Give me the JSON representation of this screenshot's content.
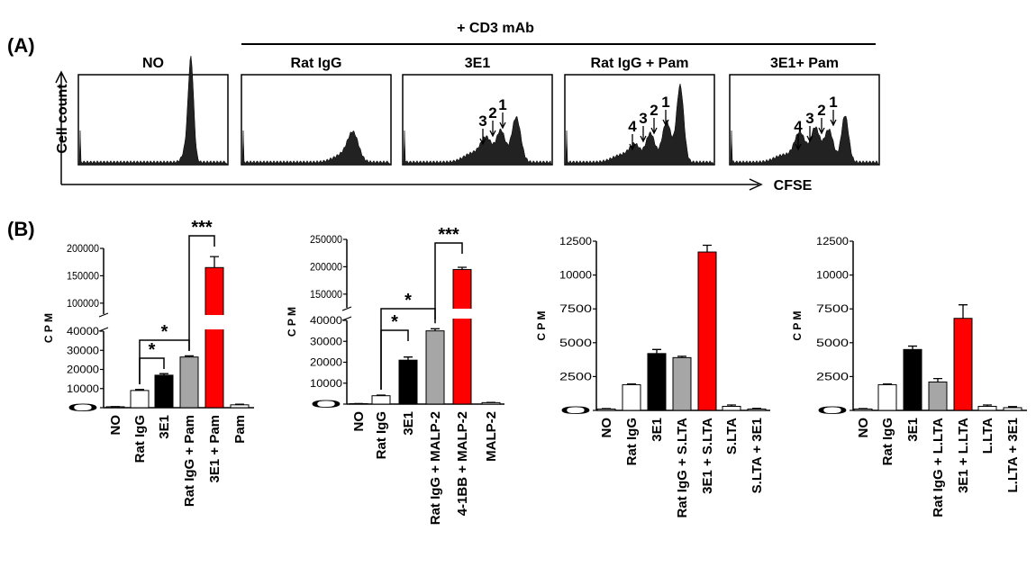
{
  "panel_a": {
    "label": "(A)",
    "group_label": "+ CD3 mAb",
    "y_label": "Cell count",
    "x_label": "CFSE",
    "panels": [
      {
        "title": "NO",
        "peaks": []
      },
      {
        "title": "Rat IgG",
        "peaks": []
      },
      {
        "title": "3E1",
        "peaks": [
          "3",
          "2",
          "1"
        ]
      },
      {
        "title": "Rat IgG + Pam",
        "peaks": [
          "4",
          "3",
          "2",
          "1"
        ]
      },
      {
        "title": "3E1+ Pam",
        "peaks": [
          "4",
          "3",
          "2",
          "1"
        ]
      }
    ]
  },
  "panel_b_label": "(B)",
  "chart_data": [
    {
      "type": "bar",
      "y_label": "C P M",
      "categories": [
        "NO",
        "Rat IgG",
        "3E1",
        "Rat IgG + Pam",
        "3E1 + Pam",
        "Pam"
      ],
      "values": [
        500,
        9000,
        17000,
        26500,
        165000,
        1500
      ],
      "errors": [
        100,
        500,
        800,
        600,
        20000,
        300
      ],
      "colors": [
        "#ffffff",
        "#ffffff",
        "#000000",
        "#a6a6a6",
        "#ff0000",
        "#ffffff"
      ],
      "y_segments": [
        {
          "ylim": [
            0,
            40000
          ],
          "yticks": [
            0,
            10000,
            20000,
            30000,
            40000
          ]
        },
        {
          "ylim": [
            80000,
            200000
          ],
          "yticks": [
            100000,
            150000,
            200000
          ]
        }
      ],
      "annotations": [
        {
          "text": "*",
          "from": 1,
          "to": 2
        },
        {
          "text": "*",
          "from": 1,
          "to": 3
        },
        {
          "text": "***",
          "from": 3,
          "to": 4
        }
      ]
    },
    {
      "type": "bar",
      "y_label": "C P M",
      "categories": [
        "NO",
        "Rat IgG",
        "3E1",
        "Rat IgG + MALP-2",
        "4-1BB + MALP-2",
        "MALP-2"
      ],
      "values": [
        200,
        4000,
        21000,
        35000,
        195000,
        700
      ],
      "errors": [
        50,
        300,
        1500,
        1000,
        4000,
        100
      ],
      "colors": [
        "#ffffff",
        "#ffffff",
        "#000000",
        "#a6a6a6",
        "#ff0000",
        "#ffffff"
      ],
      "y_segments": [
        {
          "ylim": [
            0,
            40000
          ],
          "yticks": [
            0,
            10000,
            20000,
            30000,
            40000
          ]
        },
        {
          "ylim": [
            125000,
            250000
          ],
          "yticks": [
            150000,
            200000,
            250000
          ]
        }
      ],
      "annotations": [
        {
          "text": "*",
          "from": 1,
          "to": 2
        },
        {
          "text": "*",
          "from": 1,
          "to": 3
        },
        {
          "text": "***",
          "from": 3,
          "to": 4
        }
      ]
    },
    {
      "type": "bar",
      "y_label": "C P M",
      "categories": [
        "NO",
        "Rat IgG",
        "3E1",
        "Rat IgG + S.LTA",
        "3E1 + S.LTA",
        "S.LTA",
        "S.LTA + 3E1"
      ],
      "values": [
        100,
        1900,
        4200,
        3900,
        11700,
        300,
        100
      ],
      "errors": [
        30,
        50,
        300,
        100,
        500,
        100,
        50
      ],
      "colors": [
        "#ffffff",
        "#ffffff",
        "#000000",
        "#a6a6a6",
        "#ff0000",
        "#ffffff",
        "#ffffff"
      ],
      "y_segments": [
        {
          "ylim": [
            0,
            12500
          ],
          "yticks": [
            0,
            2500,
            5000,
            7500,
            10000,
            12500
          ]
        }
      ],
      "annotations": []
    },
    {
      "type": "bar",
      "y_label": "C P M",
      "categories": [
        "NO",
        "Rat IgG",
        "3E1",
        "Rat IgG + L.LTA",
        "3E1 + L.LTA",
        "L.LTA",
        "L.LTA + 3E1"
      ],
      "values": [
        100,
        1900,
        4500,
        2100,
        6800,
        300,
        200
      ],
      "errors": [
        30,
        50,
        250,
        250,
        1000,
        100,
        80
      ],
      "colors": [
        "#ffffff",
        "#ffffff",
        "#000000",
        "#a6a6a6",
        "#ff0000",
        "#ffffff",
        "#ffffff"
      ],
      "y_segments": [
        {
          "ylim": [
            0,
            12500
          ],
          "yticks": [
            0,
            2500,
            5000,
            7500,
            10000,
            12500
          ]
        }
      ],
      "annotations": []
    }
  ]
}
